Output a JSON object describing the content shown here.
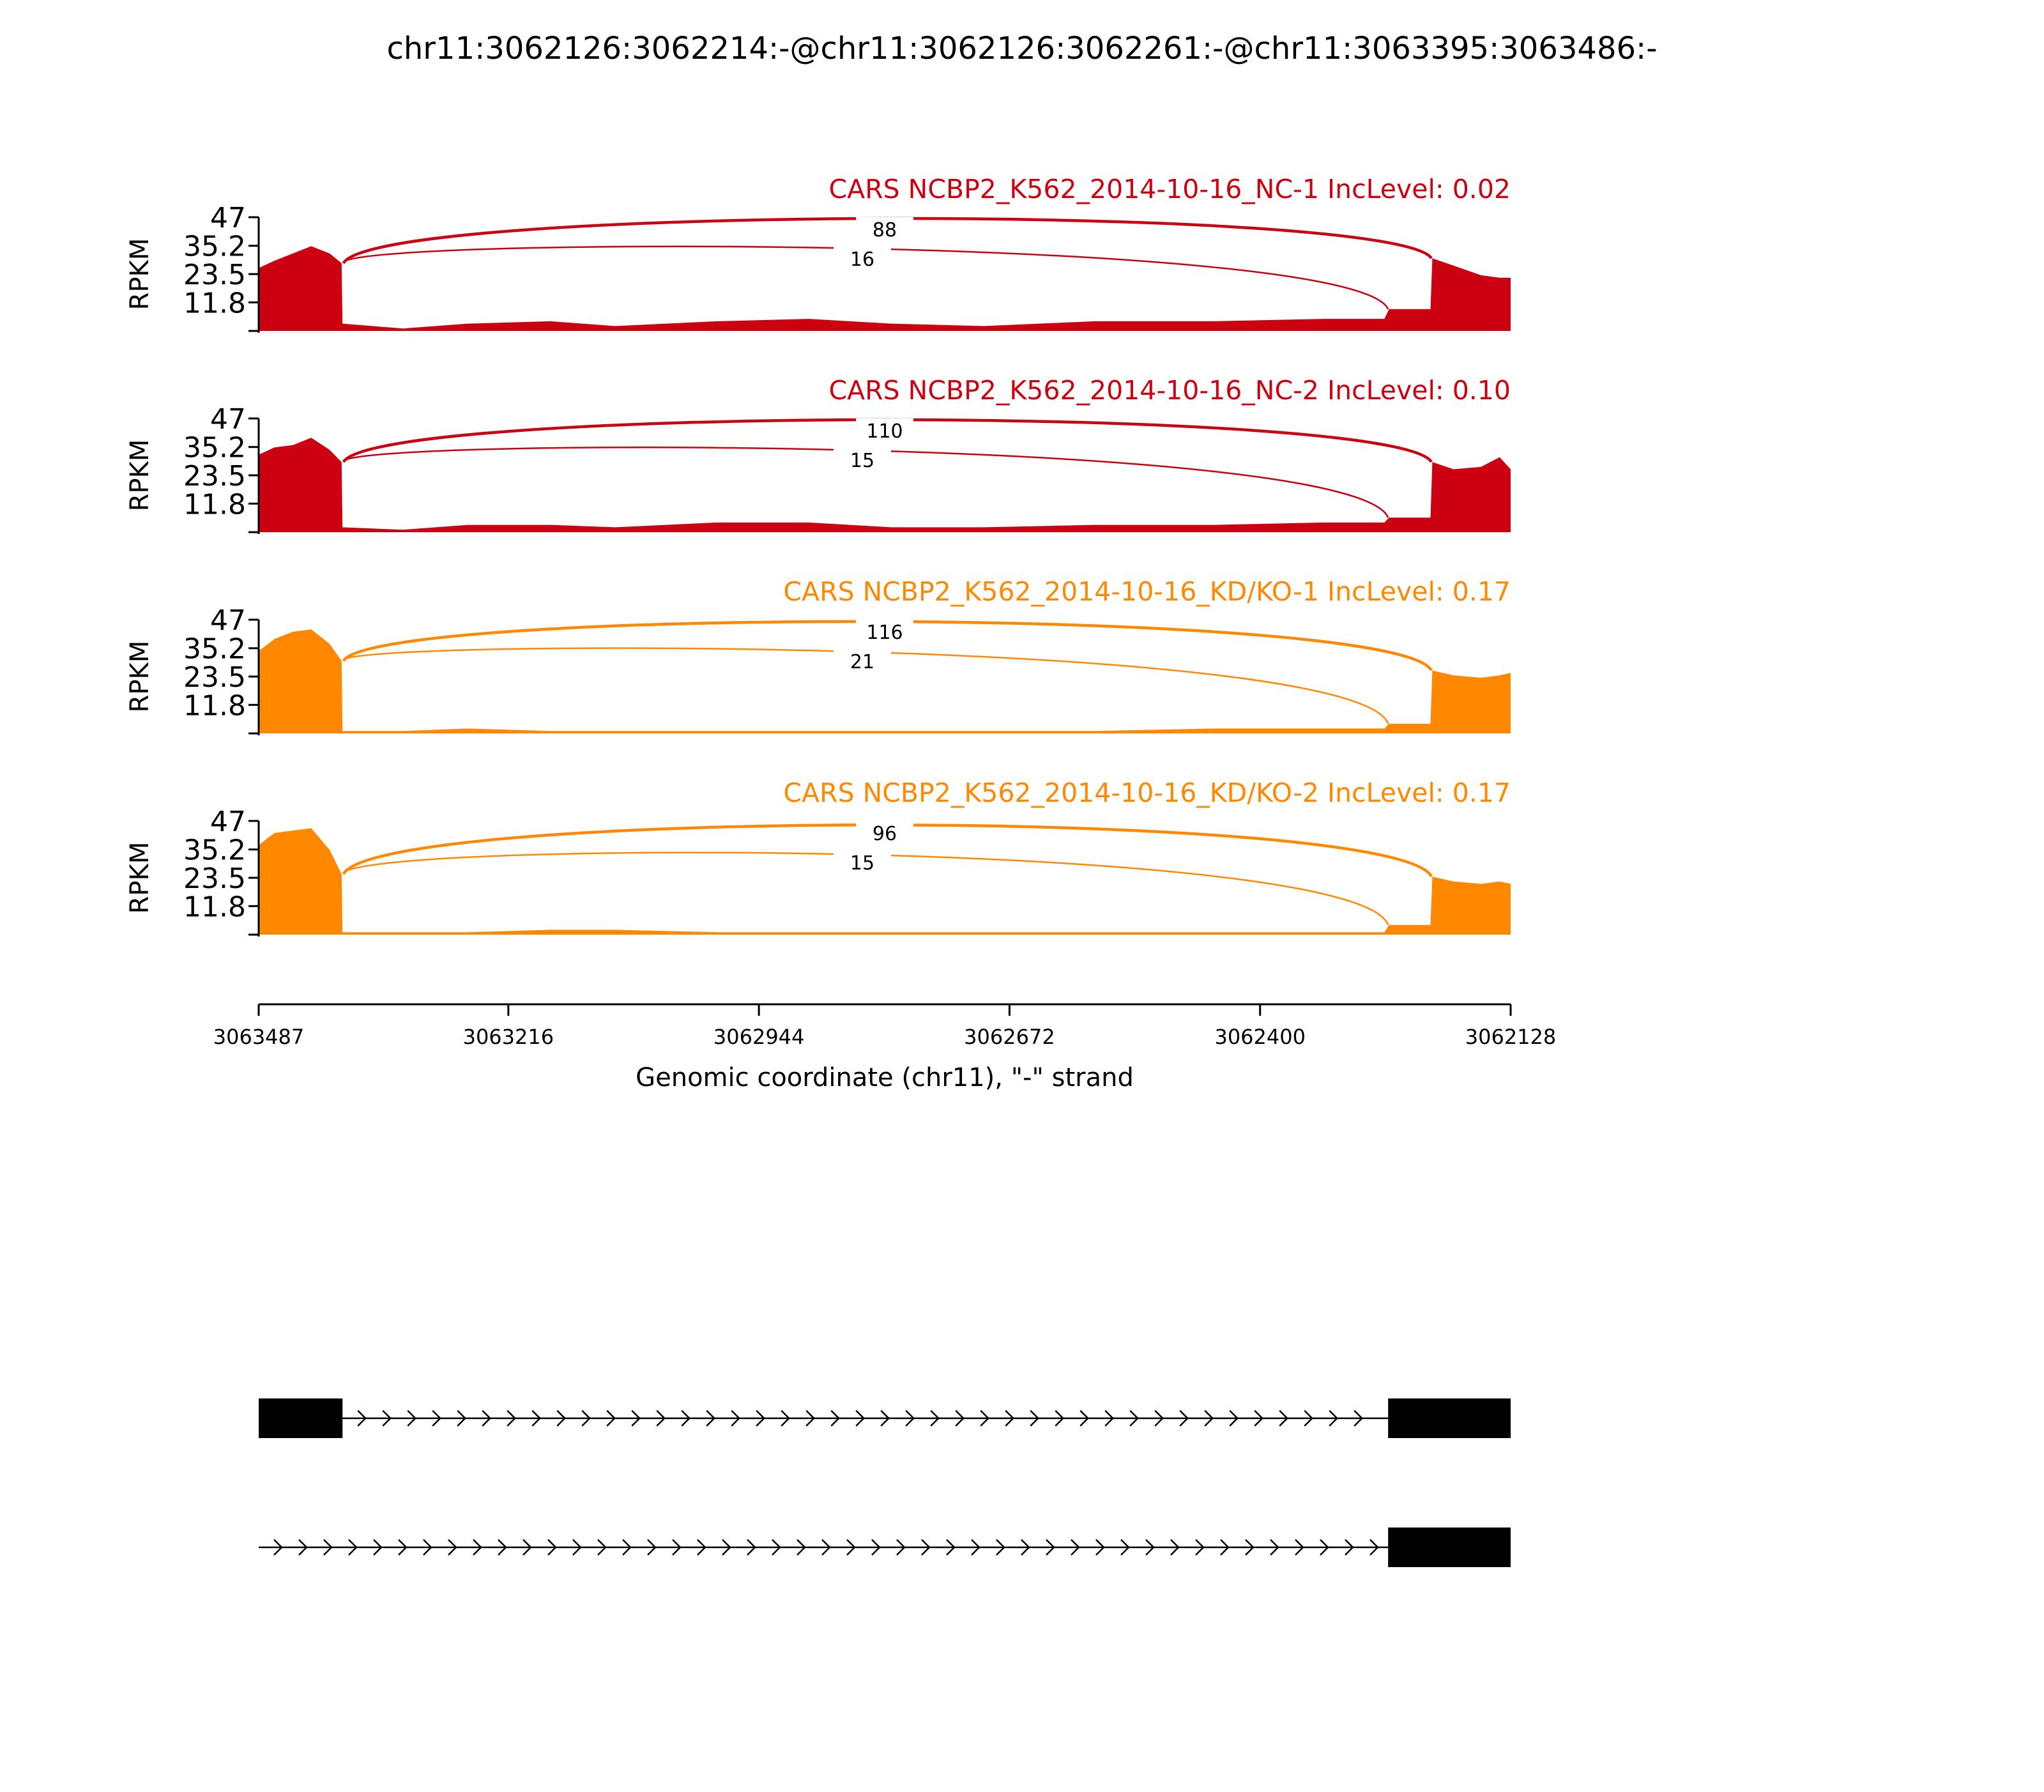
{
  "chart_data": {
    "type": "area",
    "title": "chr11:3062126:3062214:-@chr11:3062126:3062261:-@chr11:3063395:3063486:-",
    "xlabel": "Genomic coordinate (chr11), \"-\" strand",
    "ylabel": "RPKM",
    "xlim": [
      3063487,
      3062128
    ],
    "x_reversed": true,
    "xticks": [
      "3063487",
      "3063216",
      "3062944",
      "3062672",
      "3062400",
      "3062128"
    ],
    "ylim": [
      0,
      47
    ],
    "yticks": [
      "11.8",
      "23.5",
      "35.2",
      "47"
    ],
    "grid": false,
    "series": [
      {
        "name": "CARS NCBP2_K562_2014-10-16_NC-1 IncLevel: 0.02",
        "color": "#cc0011",
        "junctions": [
          {
            "from": 3063395,
            "to": 3062214,
            "count": "88"
          },
          {
            "from": 3063395,
            "to": 3062261,
            "count": "16"
          }
        ],
        "coverage": [
          {
            "x": 3063487,
            "y": 26
          },
          {
            "x": 3063470,
            "y": 29
          },
          {
            "x": 3063450,
            "y": 32
          },
          {
            "x": 3063430,
            "y": 35
          },
          {
            "x": 3063410,
            "y": 32
          },
          {
            "x": 3063397,
            "y": 28
          },
          {
            "x": 3063396,
            "y": 3
          },
          {
            "x": 3063330,
            "y": 1
          },
          {
            "x": 3063260,
            "y": 3
          },
          {
            "x": 3063170,
            "y": 4
          },
          {
            "x": 3063100,
            "y": 2
          },
          {
            "x": 3062990,
            "y": 4
          },
          {
            "x": 3062890,
            "y": 5
          },
          {
            "x": 3062800,
            "y": 3
          },
          {
            "x": 3062700,
            "y": 2
          },
          {
            "x": 3062580,
            "y": 4
          },
          {
            "x": 3062450,
            "y": 4
          },
          {
            "x": 3062330,
            "y": 5
          },
          {
            "x": 3062265,
            "y": 5
          },
          {
            "x": 3062260,
            "y": 9
          },
          {
            "x": 3062215,
            "y": 9
          },
          {
            "x": 3062213,
            "y": 30
          },
          {
            "x": 3062190,
            "y": 27
          },
          {
            "x": 3062160,
            "y": 23
          },
          {
            "x": 3062140,
            "y": 22
          },
          {
            "x": 3062128,
            "y": 22
          }
        ]
      },
      {
        "name": "CARS NCBP2_K562_2014-10-16_NC-2 IncLevel: 0.10",
        "color": "#cc0011",
        "junctions": [
          {
            "from": 3063395,
            "to": 3062214,
            "count": "110"
          },
          {
            "from": 3063395,
            "to": 3062261,
            "count": "15"
          }
        ],
        "coverage": [
          {
            "x": 3063487,
            "y": 32
          },
          {
            "x": 3063470,
            "y": 35
          },
          {
            "x": 3063450,
            "y": 36
          },
          {
            "x": 3063430,
            "y": 39
          },
          {
            "x": 3063410,
            "y": 34
          },
          {
            "x": 3063397,
            "y": 29
          },
          {
            "x": 3063396,
            "y": 2
          },
          {
            "x": 3063330,
            "y": 1
          },
          {
            "x": 3063260,
            "y": 3
          },
          {
            "x": 3063170,
            "y": 3
          },
          {
            "x": 3063100,
            "y": 2
          },
          {
            "x": 3062990,
            "y": 4
          },
          {
            "x": 3062890,
            "y": 4
          },
          {
            "x": 3062800,
            "y": 2
          },
          {
            "x": 3062700,
            "y": 2
          },
          {
            "x": 3062580,
            "y": 3
          },
          {
            "x": 3062450,
            "y": 3
          },
          {
            "x": 3062330,
            "y": 4
          },
          {
            "x": 3062265,
            "y": 4
          },
          {
            "x": 3062260,
            "y": 6
          },
          {
            "x": 3062215,
            "y": 6
          },
          {
            "x": 3062213,
            "y": 29
          },
          {
            "x": 3062190,
            "y": 26
          },
          {
            "x": 3062160,
            "y": 27
          },
          {
            "x": 3062140,
            "y": 31
          },
          {
            "x": 3062128,
            "y": 26
          }
        ]
      },
      {
        "name": "CARS NCBP2_K562_2014-10-16_KD/KO-1 IncLevel: 0.17",
        "color": "#ff8800",
        "junctions": [
          {
            "from": 3063395,
            "to": 3062214,
            "count": "116"
          },
          {
            "from": 3063395,
            "to": 3062261,
            "count": "21"
          }
        ],
        "coverage": [
          {
            "x": 3063487,
            "y": 34
          },
          {
            "x": 3063470,
            "y": 39
          },
          {
            "x": 3063450,
            "y": 42
          },
          {
            "x": 3063430,
            "y": 43
          },
          {
            "x": 3063410,
            "y": 37
          },
          {
            "x": 3063397,
            "y": 30
          },
          {
            "x": 3063396,
            "y": 1
          },
          {
            "x": 3063330,
            "y": 1
          },
          {
            "x": 3063260,
            "y": 2
          },
          {
            "x": 3063170,
            "y": 1
          },
          {
            "x": 3063100,
            "y": 1
          },
          {
            "x": 3062990,
            "y": 1
          },
          {
            "x": 3062890,
            "y": 1
          },
          {
            "x": 3062800,
            "y": 1
          },
          {
            "x": 3062700,
            "y": 1
          },
          {
            "x": 3062580,
            "y": 1
          },
          {
            "x": 3062450,
            "y": 2
          },
          {
            "x": 3062330,
            "y": 2
          },
          {
            "x": 3062265,
            "y": 2
          },
          {
            "x": 3062260,
            "y": 4
          },
          {
            "x": 3062215,
            "y": 4
          },
          {
            "x": 3062213,
            "y": 26
          },
          {
            "x": 3062190,
            "y": 24
          },
          {
            "x": 3062160,
            "y": 23
          },
          {
            "x": 3062140,
            "y": 24
          },
          {
            "x": 3062128,
            "y": 25
          }
        ]
      },
      {
        "name": "CARS NCBP2_K562_2014-10-16_KD/KO-2 IncLevel: 0.17",
        "color": "#ff8800",
        "junctions": [
          {
            "from": 3063395,
            "to": 3062214,
            "count": "96"
          },
          {
            "from": 3063395,
            "to": 3062261,
            "count": "15"
          }
        ],
        "coverage": [
          {
            "x": 3063487,
            "y": 37
          },
          {
            "x": 3063470,
            "y": 42
          },
          {
            "x": 3063450,
            "y": 43
          },
          {
            "x": 3063430,
            "y": 44
          },
          {
            "x": 3063410,
            "y": 35
          },
          {
            "x": 3063397,
            "y": 25
          },
          {
            "x": 3063396,
            "y": 1
          },
          {
            "x": 3063330,
            "y": 1
          },
          {
            "x": 3063260,
            "y": 1
          },
          {
            "x": 3063170,
            "y": 2
          },
          {
            "x": 3063100,
            "y": 2
          },
          {
            "x": 3062990,
            "y": 1
          },
          {
            "x": 3062890,
            "y": 1
          },
          {
            "x": 3062800,
            "y": 1
          },
          {
            "x": 3062700,
            "y": 1
          },
          {
            "x": 3062580,
            "y": 1
          },
          {
            "x": 3062450,
            "y": 1
          },
          {
            "x": 3062330,
            "y": 1
          },
          {
            "x": 3062265,
            "y": 1
          },
          {
            "x": 3062260,
            "y": 4
          },
          {
            "x": 3062215,
            "y": 4
          },
          {
            "x": 3062213,
            "y": 24
          },
          {
            "x": 3062190,
            "y": 22
          },
          {
            "x": 3062160,
            "y": 21
          },
          {
            "x": 3062140,
            "y": 22
          },
          {
            "x": 3062128,
            "y": 21
          }
        ]
      }
    ],
    "isoforms": [
      {
        "exons": [
          [
            3063487,
            3063396
          ],
          [
            3062261,
            3062128
          ]
        ],
        "intron": [
          3063396,
          3062261
        ]
      },
      {
        "exons": [
          [
            3062261,
            3062128
          ]
        ],
        "intron": [
          3063487,
          3062261
        ]
      }
    ]
  }
}
